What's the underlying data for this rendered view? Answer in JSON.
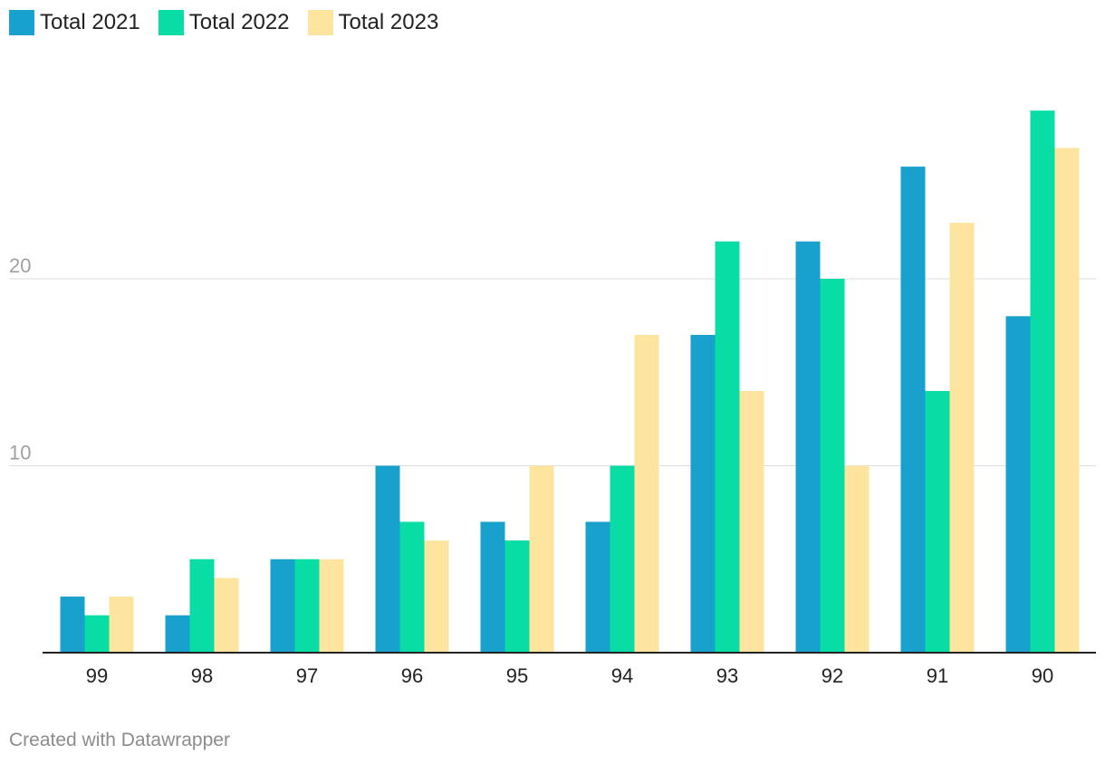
{
  "chart_data": {
    "type": "bar",
    "title": "",
    "xlabel": "",
    "ylabel": "",
    "categories": [
      "99",
      "98",
      "97",
      "96",
      "95",
      "94",
      "93",
      "92",
      "91",
      "90"
    ],
    "series": [
      {
        "name": "Total 2021",
        "color": "#18a1cd",
        "values": [
          3,
          2,
          5,
          10,
          7,
          7,
          17,
          22,
          26,
          18
        ]
      },
      {
        "name": "Total 2022",
        "color": "#09dda6",
        "values": [
          2,
          5,
          5,
          7,
          6,
          10,
          22,
          20,
          14,
          29
        ]
      },
      {
        "name": "Total 2023",
        "color": "#fee59f",
        "values": [
          3,
          4,
          5,
          6,
          10,
          17,
          14,
          10,
          23,
          27
        ]
      }
    ],
    "ylim": [
      0,
      30
    ],
    "yticks": [
      {
        "value": 10,
        "label": "10"
      },
      {
        "value": 20,
        "label": "20"
      }
    ],
    "grid": true,
    "legend_position": "top-left"
  },
  "legend": [
    {
      "label": "Total 2021",
      "color": "#18a1cd"
    },
    {
      "label": "Total 2022",
      "color": "#09dda6"
    },
    {
      "label": "Total 2023",
      "color": "#fee59f"
    }
  ],
  "footer": {
    "credit": "Created with Datawrapper"
  }
}
